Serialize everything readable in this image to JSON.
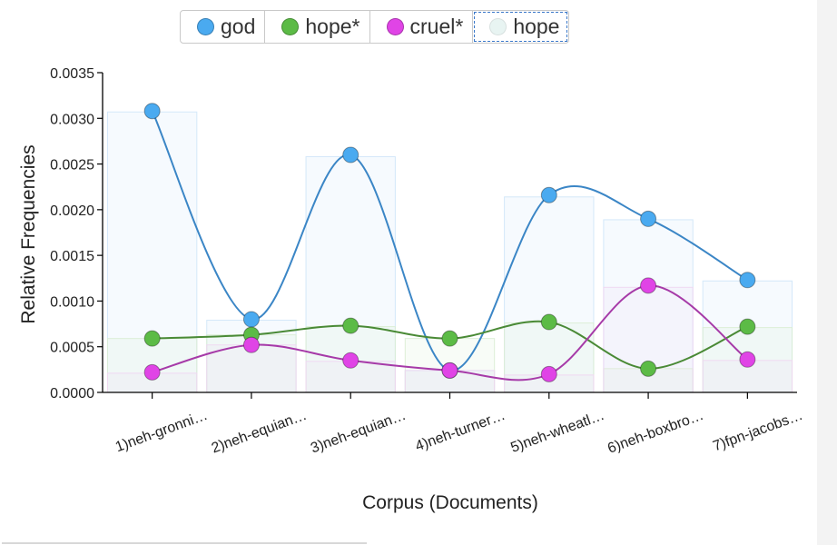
{
  "legend": {
    "items": [
      {
        "label": "god",
        "color": "#4aaaf0",
        "selected": false,
        "faded": false
      },
      {
        "label": "hope*",
        "color": "#5cbb46",
        "selected": false,
        "faded": false
      },
      {
        "label": "cruel*",
        "color": "#e044e6",
        "selected": false,
        "faded": false
      },
      {
        "label": "hope",
        "color": "#bfe0dc",
        "selected": true,
        "faded": true
      }
    ]
  },
  "chart_data": {
    "type": "line",
    "xlabel": "Corpus (Documents)",
    "ylabel": "Relative Frequencies",
    "categories": [
      "1)neh-gronni…",
      "2)neh-equian…",
      "3)neh-equian…",
      "4)neh-turner…",
      "5)neh-wheatl…",
      "6)neh-boxbro…",
      "7)fpn-jacobs…"
    ],
    "ylim": [
      0,
      0.0035
    ],
    "yticks": [
      "0.0000",
      "0.0005",
      "0.0010",
      "0.0015",
      "0.0020",
      "0.0025",
      "0.0030",
      "0.0035"
    ],
    "series": [
      {
        "name": "god",
        "color": "#4aaaf0",
        "line": "#3b86c6",
        "values": [
          0.00308,
          0.0008,
          0.0026,
          0.00024,
          0.00216,
          0.0019,
          0.00123
        ]
      },
      {
        "name": "hope*",
        "color": "#5cbb46",
        "line": "#4a8a36",
        "values": [
          0.00059,
          0.00063,
          0.00073,
          0.00059,
          0.00077,
          0.00026,
          0.00072
        ]
      },
      {
        "name": "cruel*",
        "color": "#e044e6",
        "line": "#a63aa8",
        "values": [
          0.00022,
          0.00052,
          0.00035,
          0.00024,
          0.0002,
          0.00117,
          0.00036
        ]
      }
    ],
    "background_bars": [
      {
        "series": "god",
        "color": "#cfe6f8",
        "values": [
          0.00307,
          0.00079,
          0.00258,
          0.00024,
          0.00214,
          0.00189,
          0.00122
        ]
      },
      {
        "series": "hope*",
        "color": "#d9edd3",
        "values": [
          0.00059,
          0.00063,
          0.00072,
          0.00059,
          0.00076,
          0.00026,
          0.00071
        ]
      },
      {
        "series": "cruel*",
        "color": "#efd6f2",
        "values": [
          0.00021,
          0.00052,
          0.00034,
          0.00024,
          0.00019,
          0.00115,
          0.00035
        ]
      }
    ],
    "grid": false,
    "legend_position": "top"
  }
}
